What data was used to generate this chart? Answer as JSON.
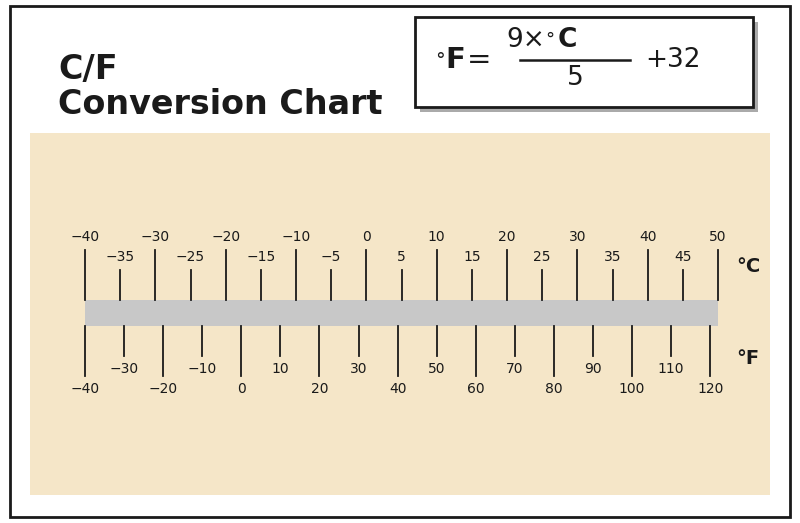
{
  "title_line1": "C/F",
  "title_line2": "Conversion Chart",
  "background_color": "#FFFFFF",
  "panel_color": "#F5E6C8",
  "border_color": "#1a1a1a",
  "text_color": "#1a1a1a",
  "bar_color": "#C8C8C8",
  "formula_box_color": "#FFFFFF",
  "celsius_major": [
    -40,
    -30,
    -20,
    -10,
    0,
    10,
    20,
    30,
    40,
    50
  ],
  "celsius_minor": [
    -35,
    -25,
    -15,
    -5,
    5,
    15,
    25,
    35,
    45
  ],
  "fahrenheit_major": [
    -40,
    -20,
    0,
    20,
    40,
    60,
    80,
    100,
    120
  ],
  "fahrenheit_minor": [
    -30,
    -10,
    10,
    30,
    50,
    70,
    90,
    110
  ],
  "c_min": -40,
  "c_max": 50,
  "f_min": -40,
  "f_max": 120,
  "fig_width": 8.0,
  "fig_height": 5.23,
  "dpi": 100
}
